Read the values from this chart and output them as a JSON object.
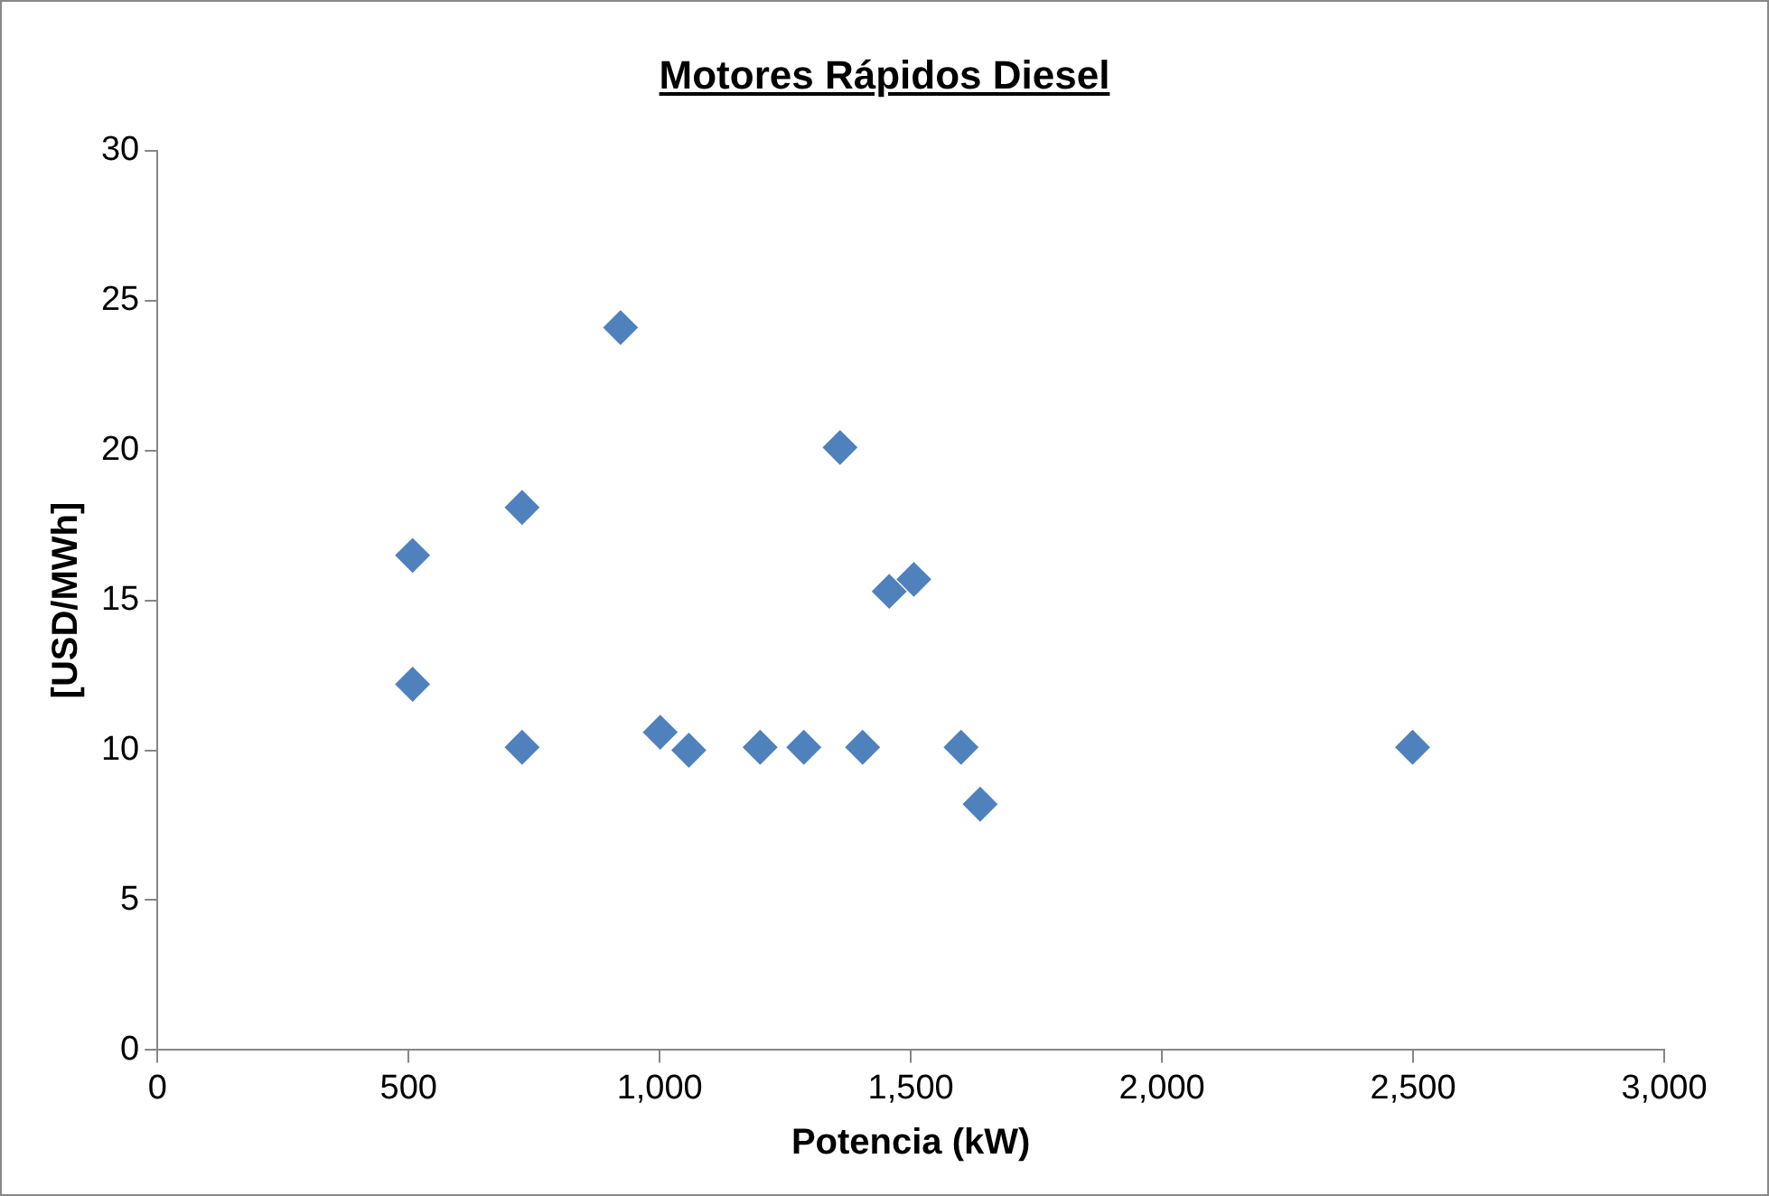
{
  "chart_data": {
    "type": "scatter",
    "title": "Motores Rápidos Diesel",
    "xlabel": "Potencia (kW)",
    "ylabel": "[USD/MWh]",
    "marker": "diamond",
    "x": [
      508,
      508,
      726,
      726,
      922,
      1001,
      1058,
      1200,
      1287,
      1359,
      1404,
      1457,
      1506,
      1600,
      1638,
      2499
    ],
    "series": [
      {
        "color": "#4f81bd",
        "values": [
          16.5,
          12.2,
          18.1,
          10.1,
          24.1,
          10.6,
          10.0,
          10.1,
          10.1,
          20.1,
          10.1,
          15.3,
          15.7,
          10.1,
          8.2,
          10.1
        ]
      }
    ],
    "xlim": [
      0,
      3000
    ],
    "xticks": [
      0,
      500,
      {
        "value": 1000,
        "label": "1,000"
      },
      {
        "value": 1500,
        "label": "1,500"
      },
      {
        "value": 2000,
        "label": "2,000"
      },
      {
        "value": 2500,
        "label": "2,500"
      },
      {
        "value": 3000,
        "label": "3,000"
      }
    ],
    "ylim": [
      0,
      30
    ],
    "yticks": [
      0,
      5,
      10,
      15,
      20,
      25,
      30
    ]
  }
}
